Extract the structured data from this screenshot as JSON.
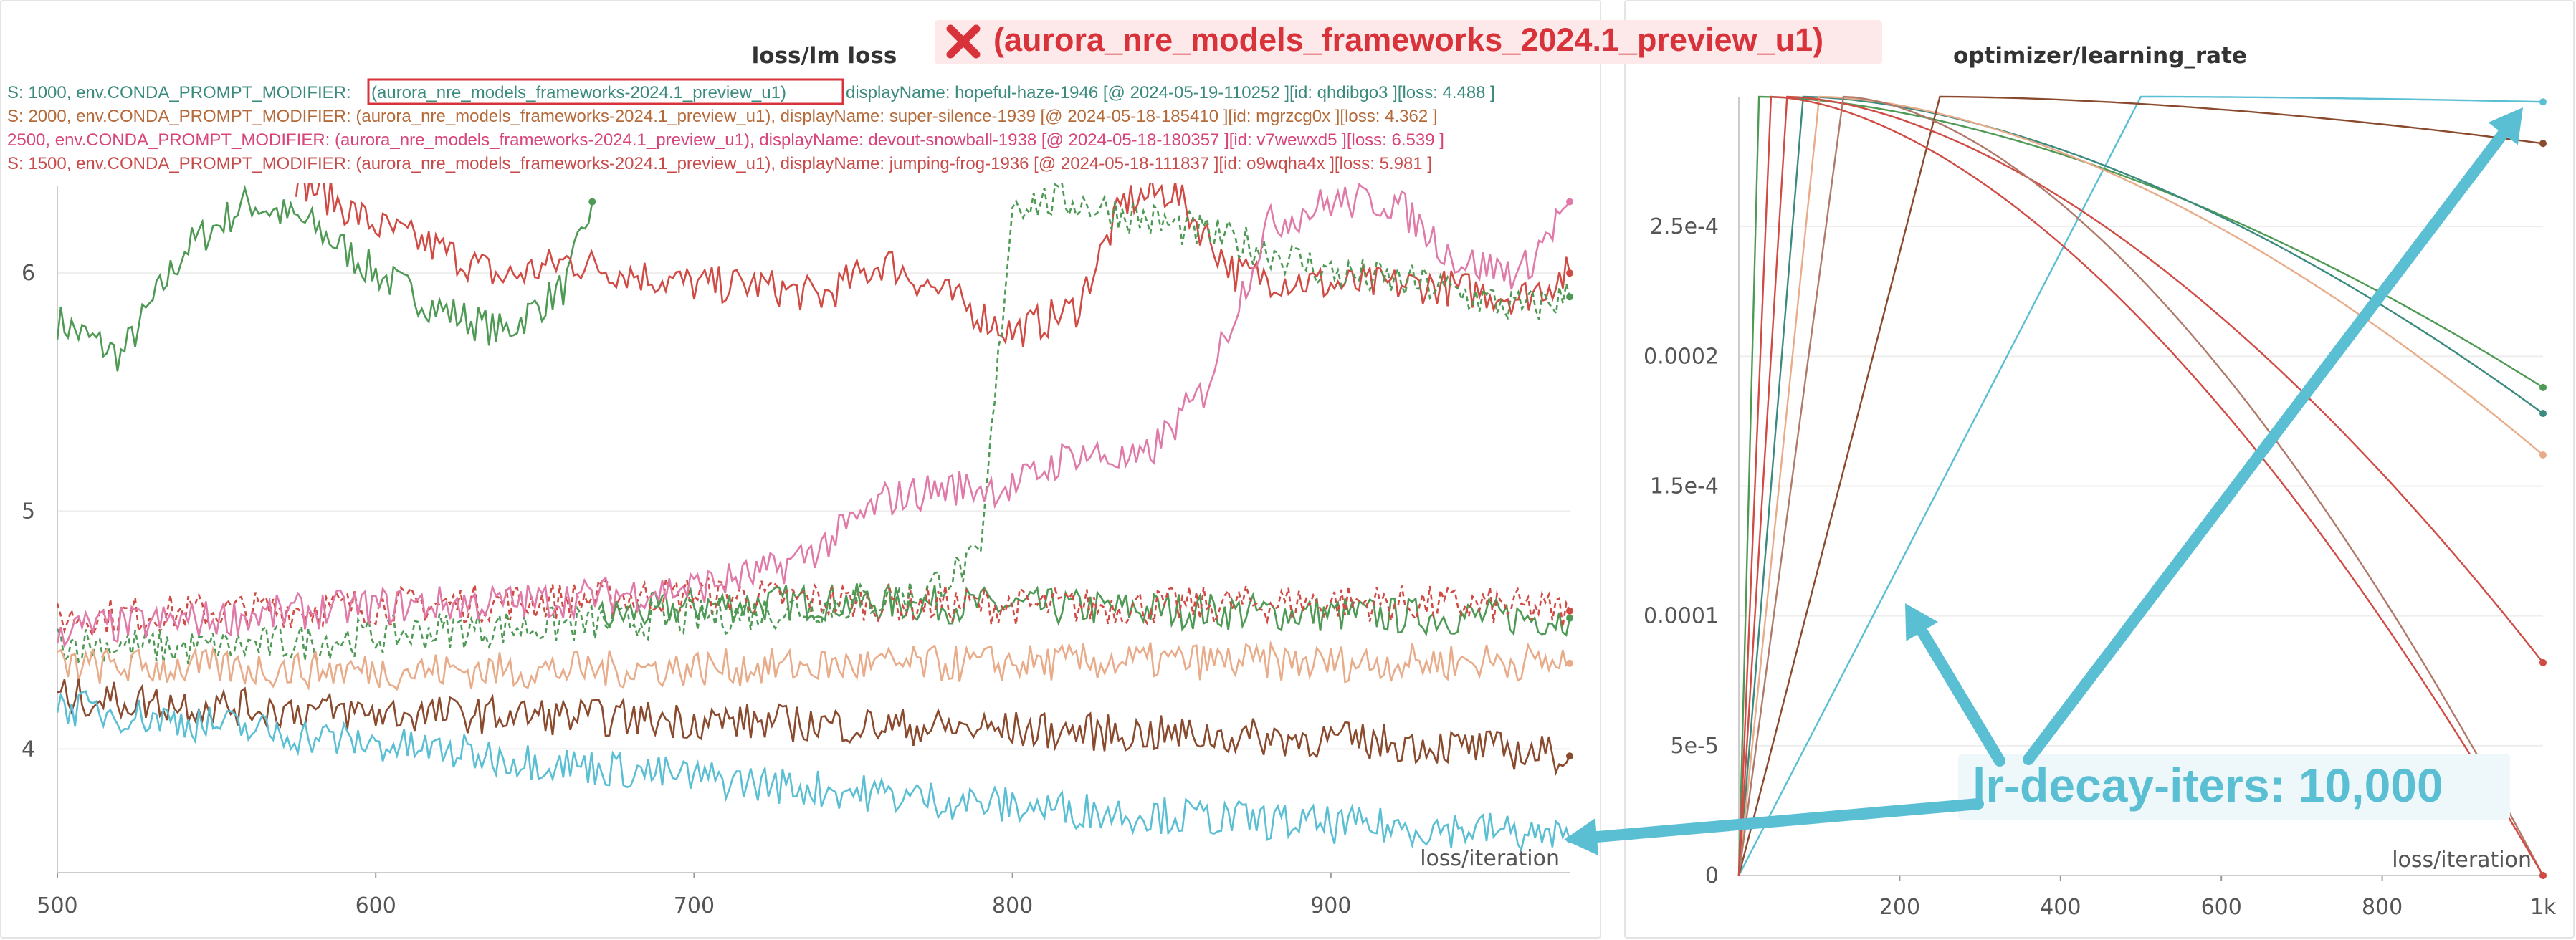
{
  "banner": {
    "text": "(aurora_nre_models_frameworks_2024.1_preview_u1)",
    "icon": "x-mark-icon",
    "color": "#d8323a"
  },
  "callout": {
    "text": "lr-decay-iters: 10,000",
    "color": "#5bbfd4"
  },
  "legend": [
    {
      "text": "S: 1000, env.CONDA_PROMPT_MODIFIER: ",
      "highlight": "(aurora_nre_models_frameworks-2024.1_preview_u1)",
      "rest": " displayName: hopeful-haze-1946 [@ 2024-05-19-110252 ][id: qhdibgo3 ][loss: 4.488 ]",
      "color": "#3a8a7e"
    },
    {
      "text": "S: 2000, env.CONDA_PROMPT_MODIFIER: (aurora_nre_models_frameworks-2024.1_preview_u1), displayName: super-silence-1939 [@ 2024-05-18-185410 ][id: mgrzcg0x ][loss: 4.362 ]",
      "color": "#b56a3a"
    },
    {
      "text": "2500, env.CONDA_PROMPT_MODIFIER: (aurora_nre_models_frameworks-2024.1_preview_u1), displayName: devout-snowball-1938 [@ 2024-05-18-180357 ][id: v7wewxd5 ][loss: 6.539 ]",
      "color": "#d8457a"
    },
    {
      "text": "S: 1500, env.CONDA_PROMPT_MODIFIER: (aurora_nre_models_frameworks-2024.1_preview_u1), displayName: jumping-frog-1936 [@ 2024-05-18-111837 ][id: o9wqha4x ][loss: 5.981 ]",
      "color": "#c94a4a"
    }
  ],
  "chart_data": [
    {
      "type": "line",
      "title": "loss/lm loss",
      "xlabel": "loss/iteration",
      "ylabel": "",
      "xlim": [
        500,
        975
      ],
      "ylim": [
        3.48,
        6.38
      ],
      "xticks": [
        500,
        600,
        700,
        800,
        900
      ],
      "yticks": [
        4,
        5,
        6
      ],
      "series": [
        {
          "color": "#4e9a55",
          "style": "solid",
          "segments": [
            {
              "x": [
                500,
                520,
                540,
                560,
                580,
                600,
                620,
                640,
                660,
                668
              ],
              "y": [
                5.8,
                5.65,
                6.1,
                6.3,
                6.2,
                6.0,
                5.85,
                5.75,
                5.95,
                6.3
              ]
            },
            {
              "x": [
                670,
                700,
                740,
                800,
                860,
                920,
                975
              ],
              "y": [
                4.55,
                4.6,
                4.62,
                4.6,
                4.58,
                4.56,
                4.55
              ]
            }
          ]
        },
        {
          "color": "#d14b45",
          "style": "solid",
          "x": [
            575,
            600,
            620,
            640,
            660,
            680,
            700,
            720,
            740,
            760,
            780,
            800,
            820,
            835,
            850,
            870,
            900,
            930,
            960,
            975
          ],
          "y": [
            6.4,
            6.2,
            6.1,
            5.98,
            6.05,
            6.0,
            5.95,
            5.95,
            5.9,
            6.05,
            5.9,
            5.75,
            5.85,
            6.3,
            6.35,
            6.0,
            5.95,
            5.95,
            5.9,
            6.0
          ]
        },
        {
          "color": "#d14b45",
          "style": "dashed",
          "x": [
            500,
            550,
            600,
            650,
            700,
            750,
            800,
            850,
            900,
            950,
            975
          ],
          "y": [
            4.55,
            4.58,
            4.6,
            4.62,
            4.65,
            4.62,
            4.6,
            4.6,
            4.62,
            4.6,
            4.58
          ]
        },
        {
          "color": "#4e9a55",
          "style": "dashed",
          "x": [
            500,
            540,
            580,
            620,
            660,
            700,
            740,
            770,
            790,
            800,
            820,
            850,
            880,
            900,
            930,
            960,
            975
          ],
          "y": [
            4.45,
            4.42,
            4.45,
            4.5,
            4.52,
            4.55,
            4.6,
            4.65,
            4.8,
            6.3,
            6.3,
            6.2,
            6.1,
            6.0,
            5.95,
            5.85,
            5.9
          ]
        },
        {
          "color": "#e07aa9",
          "style": "solid",
          "x": [
            500,
            550,
            600,
            650,
            700,
            725,
            740,
            760,
            780,
            800,
            820,
            840,
            860,
            880,
            900,
            920,
            940,
            960,
            975
          ],
          "y": [
            4.5,
            4.55,
            4.6,
            4.62,
            4.68,
            4.75,
            4.85,
            5.05,
            5.1,
            5.1,
            5.25,
            5.2,
            5.5,
            6.2,
            6.3,
            6.3,
            6.05,
            6.0,
            6.3
          ]
        },
        {
          "color": "#e8ac8a",
          "style": "solid",
          "x": [
            500,
            550,
            600,
            650,
            700,
            750,
            800,
            850,
            900,
            950,
            975
          ],
          "y": [
            4.35,
            4.34,
            4.33,
            4.33,
            4.34,
            4.35,
            4.36,
            4.37,
            4.36,
            4.37,
            4.36
          ]
        },
        {
          "color": "#8a4a2e",
          "style": "solid",
          "x": [
            500,
            550,
            600,
            650,
            700,
            750,
            800,
            850,
            900,
            950,
            975
          ],
          "y": [
            4.22,
            4.18,
            4.15,
            4.14,
            4.12,
            4.1,
            4.08,
            4.06,
            4.04,
            4.0,
            3.97
          ]
        },
        {
          "color": "#5bbfd4",
          "style": "solid",
          "x": [
            500,
            550,
            600,
            650,
            700,
            750,
            800,
            850,
            900,
            950,
            975
          ],
          "y": [
            4.18,
            4.1,
            4.02,
            3.95,
            3.88,
            3.82,
            3.76,
            3.72,
            3.68,
            3.66,
            3.62
          ]
        }
      ],
      "annotation": {
        "text": "(aurora_nre_models_frameworks-2024.1_preview_u1)",
        "color": "#d8323a"
      }
    },
    {
      "type": "line",
      "title": "optimizer/learning_rate",
      "xlabel": "loss/iteration",
      "ylabel": "",
      "xlim": [
        0,
        1000
      ],
      "ylim": [
        0,
        0.0003
      ],
      "xticks": [
        200,
        400,
        600,
        800
      ],
      "xtick_labels": [
        "200",
        "400",
        "600",
        "800"
      ],
      "last_xtick_label": "1k",
      "yticks": [
        0,
        5e-05,
        0.0001,
        0.00015,
        0.0002,
        0.00025
      ],
      "ytick_labels": [
        "0",
        "5e-5",
        "0.0001",
        "1.5e-4",
        "0.0002",
        "2.5e-4"
      ],
      "series": [
        {
          "color": "#5bbfd4",
          "warmup": 500,
          "peak": 0.0003,
          "decay": 10000,
          "end": 0.000298
        },
        {
          "color": "#4e9a55",
          "warmup": 25,
          "peak": 0.0003,
          "decay": 2000,
          "end": 0.000188
        },
        {
          "color": "#3a8a7e",
          "warmup": 80,
          "peak": 0.0003,
          "decay": 2000,
          "end": 0.000178
        },
        {
          "color": "#e8ac8a",
          "warmup": 100,
          "peak": 0.0003,
          "decay": 1700,
          "end": 0.000162
        },
        {
          "color": "#8a4a2e",
          "warmup": 250,
          "peak": 0.0003,
          "decay": 5000,
          "end": 0.000282
        },
        {
          "color": "#d14b45",
          "warmup": 60,
          "peak": 0.0003,
          "decay": 1200,
          "end": 8.2e-05
        },
        {
          "color": "#b07a6a",
          "warmup": 130,
          "peak": 0.0003,
          "decay": 1000,
          "end": 0.0
        },
        {
          "color": "#d14b45",
          "warmup": 40,
          "peak": 0.0003,
          "decay": 1050,
          "end": 0.0
        }
      ]
    }
  ]
}
